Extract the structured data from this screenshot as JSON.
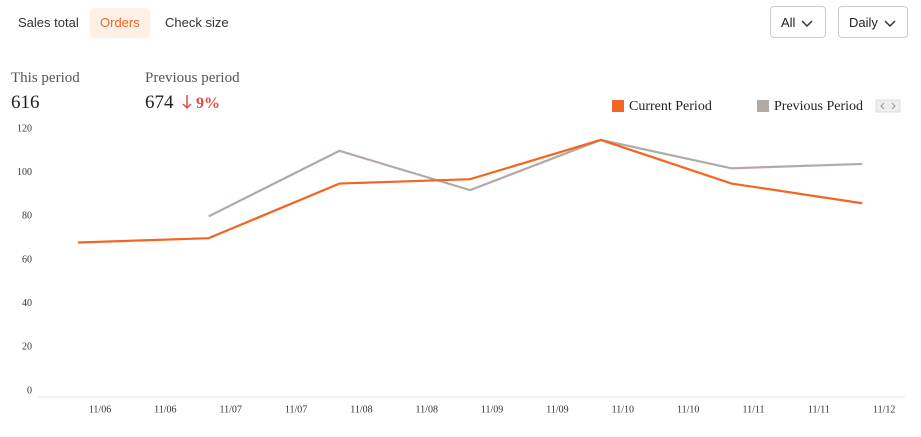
{
  "tabs": [
    "Sales total",
    "Orders",
    "Check size"
  ],
  "filters": [
    "All",
    "Daily"
  ],
  "stats": {
    "this_label": "This period",
    "this_value": 616,
    "prev_label": "Previous period",
    "prev_value": 674,
    "change": "9%"
  },
  "chart_data": {
    "type": "line",
    "x_labels": [
      "11/06",
      "11/06",
      "11/07",
      "11/07",
      "11/08",
      "11/08",
      "11/09",
      "11/09",
      "11/10",
      "11/10",
      "11/11",
      "11/11",
      "11/12"
    ],
    "series": [
      {
        "name": "Current Period",
        "color": "#f26522",
        "values": [
          68,
          70,
          95,
          97,
          115,
          95,
          86
        ]
      },
      {
        "name": "Previous Period",
        "color": "#b3a9a5",
        "values": [
          null,
          80,
          110,
          92,
          115,
          102,
          104
        ]
      }
    ],
    "ylim": [
      0,
      120
    ],
    "yticks": [
      0,
      20,
      40,
      60,
      80,
      100,
      120
    ]
  }
}
